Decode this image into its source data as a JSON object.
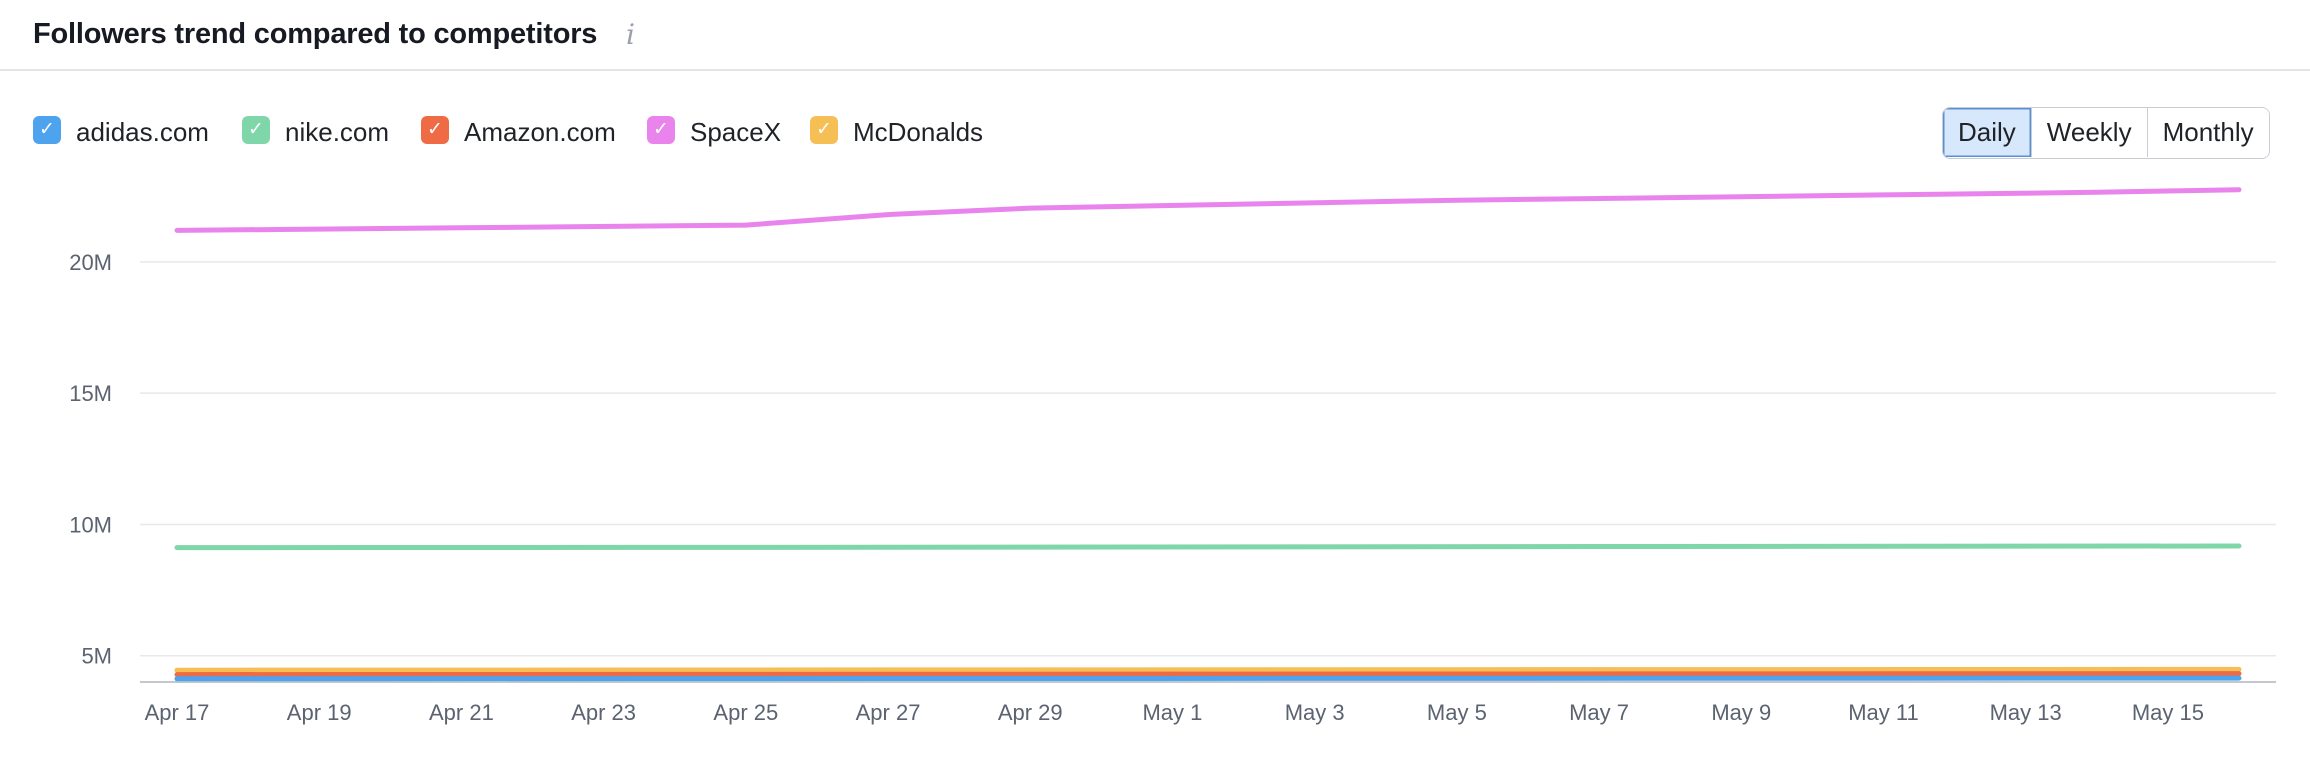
{
  "header": {
    "title": "Followers trend compared to competitors",
    "info_icon": "info-icon"
  },
  "legend": [
    {
      "label": "adidas.com",
      "color": "#4ea3ee",
      "checked": true
    },
    {
      "label": "nike.com",
      "color": "#7fd6a8",
      "checked": true
    },
    {
      "label": "Amazon.com",
      "color": "#ee6b45",
      "checked": true
    },
    {
      "label": "SpaceX",
      "color": "#e884ec",
      "checked": true
    },
    {
      "label": "McDonalds",
      "color": "#f6bf55",
      "checked": true
    }
  ],
  "period_toggle": {
    "options": [
      "Daily",
      "Weekly",
      "Monthly"
    ],
    "selected": "Daily"
  },
  "chart_data": {
    "type": "line",
    "title": "Followers trend compared to competitors",
    "xlabel": "",
    "ylabel": "",
    "ylim": [
      4000000,
      23500000
    ],
    "yticks": [
      5000000,
      10000000,
      15000000,
      20000000
    ],
    "ytick_labels": [
      "5M",
      "10M",
      "15M",
      "20M"
    ],
    "grid": true,
    "x_tick_labels": [
      "Apr 17",
      "Apr 19",
      "Apr 21",
      "Apr 23",
      "Apr 25",
      "Apr 27",
      "Apr 29",
      "May 1",
      "May 3",
      "May 5",
      "May 7",
      "May 9",
      "May 11",
      "May 13",
      "May 15"
    ],
    "x_tick_indices": [
      0,
      2,
      4,
      6,
      8,
      10,
      12,
      14,
      16,
      18,
      20,
      22,
      24,
      26,
      28
    ],
    "x_count": 30,
    "series": [
      {
        "name": "SpaceX",
        "color": "#e884ec",
        "points": [
          [
            0,
            21200000
          ],
          [
            4,
            21300000
          ],
          [
            8,
            21400000
          ],
          [
            10,
            21800000
          ],
          [
            12,
            22050000
          ],
          [
            15,
            22200000
          ],
          [
            18,
            22350000
          ],
          [
            21,
            22450000
          ],
          [
            24,
            22550000
          ],
          [
            27,
            22650000
          ],
          [
            29,
            22750000
          ]
        ]
      },
      {
        "name": "nike.com",
        "color": "#7fd6a8",
        "points": [
          [
            0,
            9120000
          ],
          [
            10,
            9130000
          ],
          [
            20,
            9160000
          ],
          [
            29,
            9180000
          ]
        ]
      },
      {
        "name": "McDonalds",
        "color": "#f6bf55",
        "points": [
          [
            0,
            4450000
          ],
          [
            29,
            4480000
          ]
        ]
      },
      {
        "name": "Amazon.com",
        "color": "#ee6b45",
        "points": [
          [
            0,
            4280000
          ],
          [
            29,
            4320000
          ]
        ]
      },
      {
        "name": "adidas.com",
        "color": "#4ea3ee",
        "points": [
          [
            0,
            4120000
          ],
          [
            29,
            4150000
          ]
        ]
      }
    ]
  }
}
